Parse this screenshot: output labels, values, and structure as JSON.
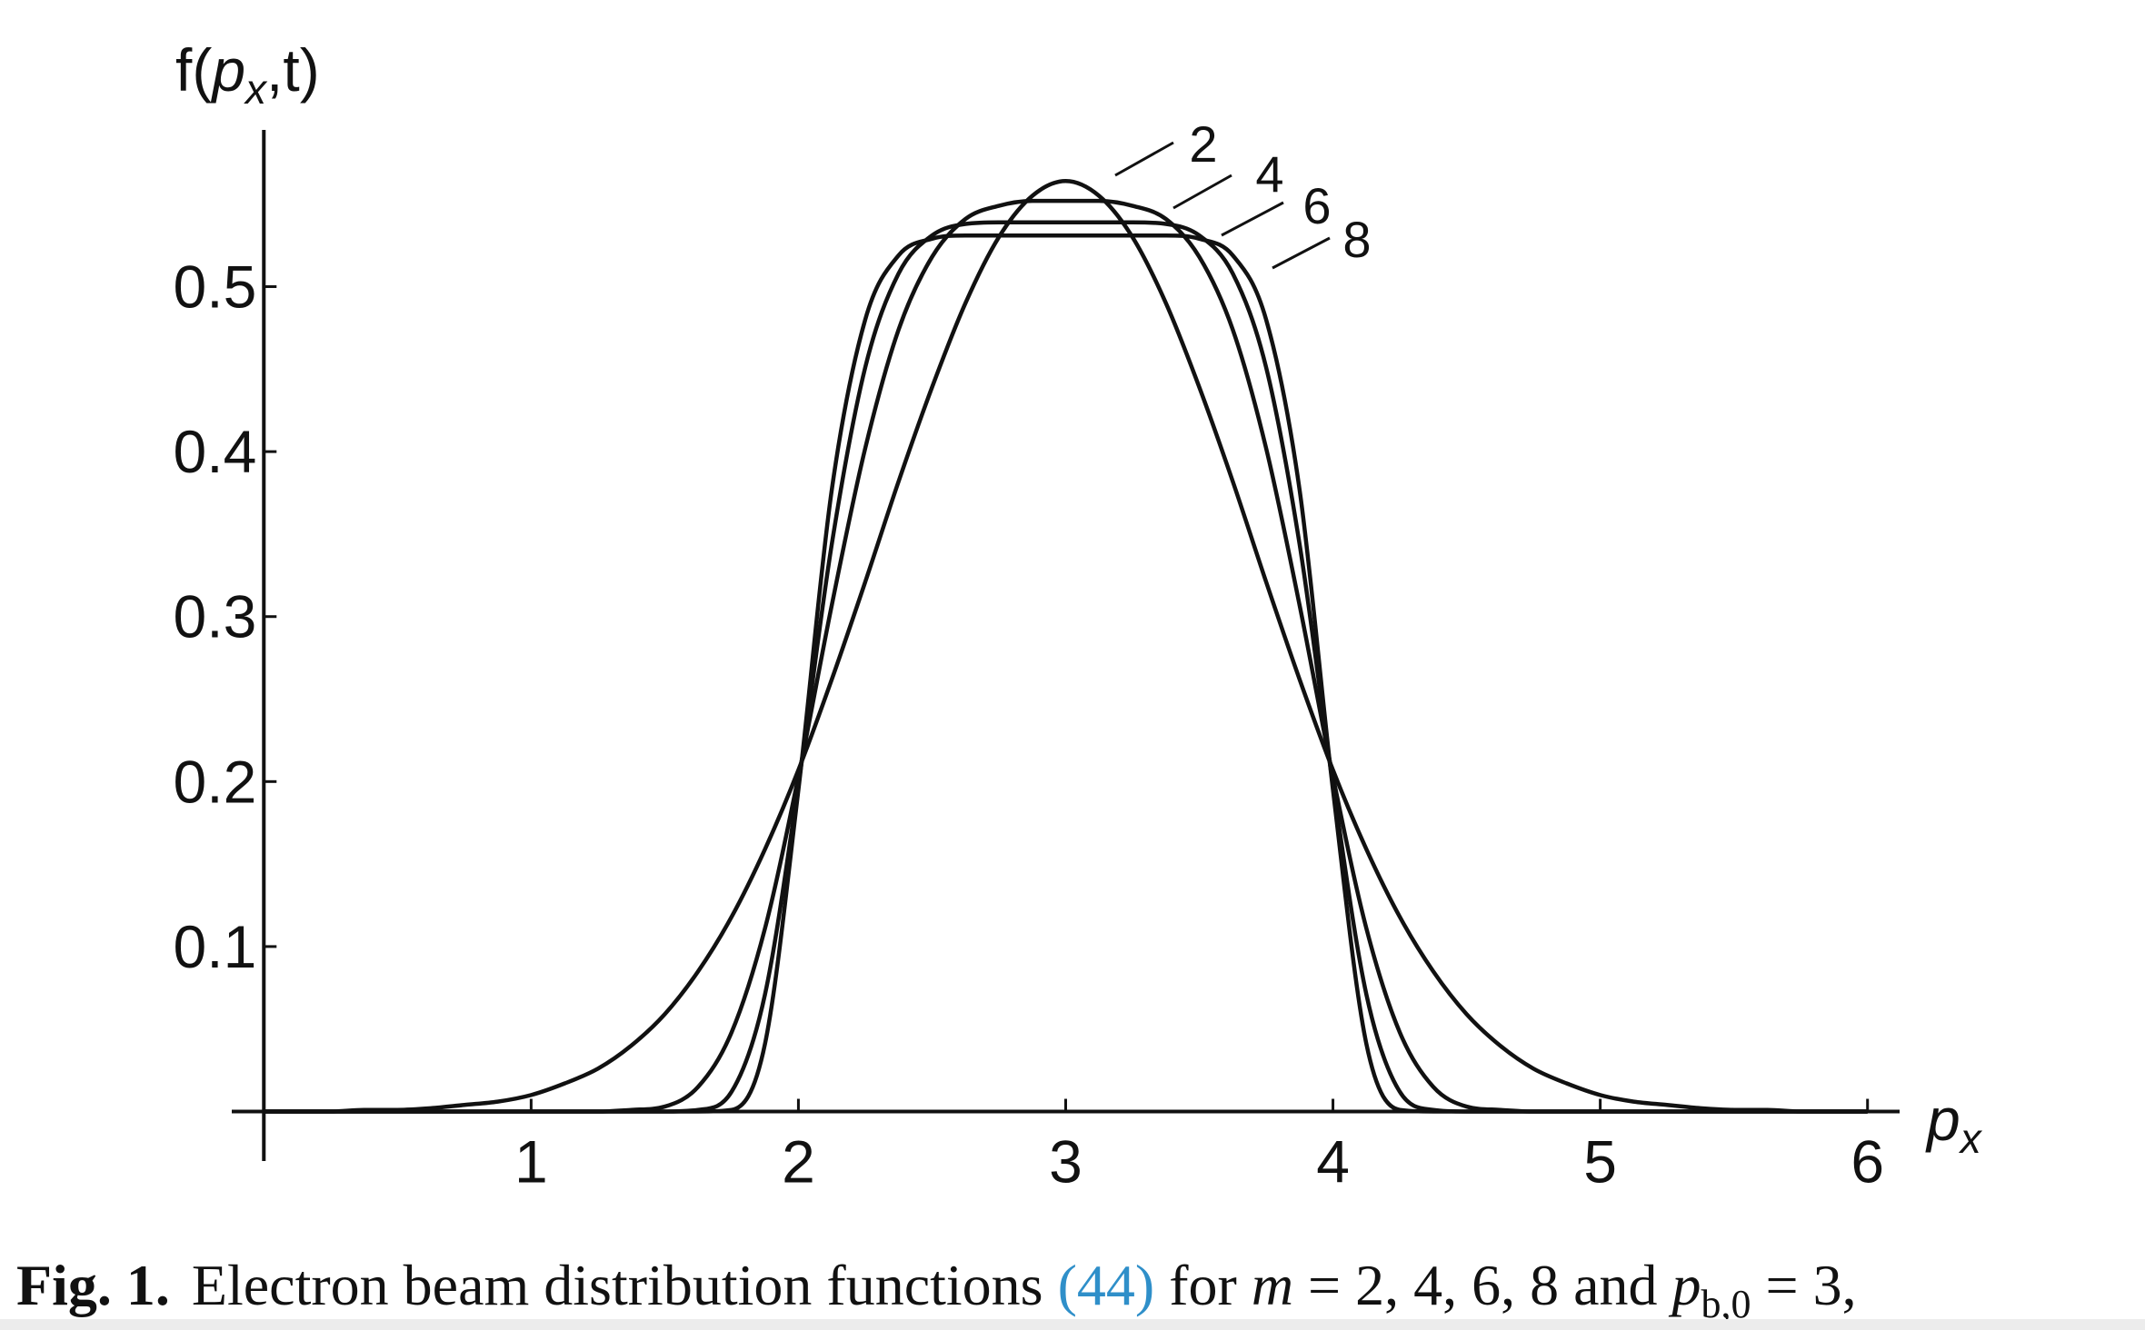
{
  "chart_data": {
    "type": "line",
    "ylabel": [
      "f(",
      "p",
      "x",
      ",t)"
    ],
    "xlabel": [
      "p",
      "x"
    ],
    "x": [
      0,
      0.125,
      0.25,
      0.375,
      0.5,
      0.625,
      0.75,
      0.875,
      1,
      1.125,
      1.25,
      1.375,
      1.5,
      1.625,
      1.75,
      1.875,
      2,
      2.125,
      2.25,
      2.375,
      2.5,
      2.625,
      2.75,
      2.875,
      3,
      3.125,
      3.25,
      3.375,
      3.5,
      3.625,
      3.75,
      3.875,
      4,
      4.125,
      4.25,
      4.375,
      4.5,
      4.625,
      4.75,
      4.875,
      5,
      5.125,
      5.25,
      5.375,
      5.5,
      5.625,
      5.75,
      5.875,
      6
    ],
    "series": [
      {
        "name": "2",
        "color": "#111111",
        "values": [
          0,
          0,
          0,
          0.001,
          0.001,
          0.002,
          0.004,
          0.006,
          0.01,
          0.017,
          0.026,
          0.04,
          0.059,
          0.085,
          0.118,
          0.159,
          0.207,
          0.262,
          0.321,
          0.382,
          0.439,
          0.49,
          0.53,
          0.555,
          0.564,
          0.555,
          0.53,
          0.49,
          0.439,
          0.382,
          0.321,
          0.262,
          0.207,
          0.159,
          0.118,
          0.085,
          0.059,
          0.04,
          0.026,
          0.017,
          0.01,
          0.006,
          0.004,
          0.002,
          0.001,
          0.001,
          0,
          0,
          0
        ]
      },
      {
        "name": "4",
        "color": "#111111",
        "values": [
          0,
          0,
          0,
          0,
          0,
          0,
          0,
          0,
          0,
          0,
          0,
          0.001,
          0.003,
          0.015,
          0.048,
          0.111,
          0.203,
          0.307,
          0.402,
          0.474,
          0.518,
          0.541,
          0.549,
          0.552,
          0.552,
          0.552,
          0.549,
          0.541,
          0.518,
          0.474,
          0.402,
          0.307,
          0.203,
          0.111,
          0.048,
          0.015,
          0.003,
          0.001,
          0,
          0,
          0,
          0,
          0,
          0,
          0,
          0,
          0,
          0,
          0
        ]
      },
      {
        "name": "6",
        "color": "#111111",
        "values": [
          0,
          0,
          0,
          0,
          0,
          0,
          0,
          0,
          0,
          0,
          0,
          0,
          0,
          0.001,
          0.012,
          0.071,
          0.198,
          0.344,
          0.451,
          0.508,
          0.531,
          0.538,
          0.539,
          0.539,
          0.539,
          0.539,
          0.539,
          0.538,
          0.531,
          0.508,
          0.451,
          0.344,
          0.198,
          0.071,
          0.012,
          0.001,
          0,
          0,
          0,
          0,
          0,
          0,
          0,
          0,
          0,
          0,
          0,
          0,
          0
        ]
      },
      {
        "name": "8",
        "color": "#111111",
        "values": [
          0,
          0,
          0,
          0,
          0,
          0,
          0,
          0,
          0,
          0,
          0,
          0,
          0,
          0,
          0.001,
          0.041,
          0.195,
          0.377,
          0.48,
          0.519,
          0.529,
          0.531,
          0.531,
          0.531,
          0.531,
          0.531,
          0.531,
          0.531,
          0.529,
          0.519,
          0.48,
          0.377,
          0.195,
          0.041,
          0.001,
          0,
          0,
          0,
          0,
          0,
          0,
          0,
          0,
          0,
          0,
          0,
          0,
          0,
          0
        ]
      }
    ],
    "xlim": [
      -0.12,
      6.12
    ],
    "xticks": [
      1,
      2,
      3,
      4,
      5,
      6
    ],
    "ylim": [
      -0.03,
      0.595
    ],
    "yticks": [
      0.1,
      0.2,
      0.3,
      0.4,
      0.5
    ],
    "grid": false,
    "caption": {
      "label": "Fig. 1.",
      "text": "Electron beam distribution functions",
      "ref": "(44)",
      "for": "for",
      "m": "m",
      "m_values": "= 2, 4, 6, 8 and",
      "p": "p",
      "p_sub": "b,0",
      "p_value": "= 3,"
    }
  }
}
